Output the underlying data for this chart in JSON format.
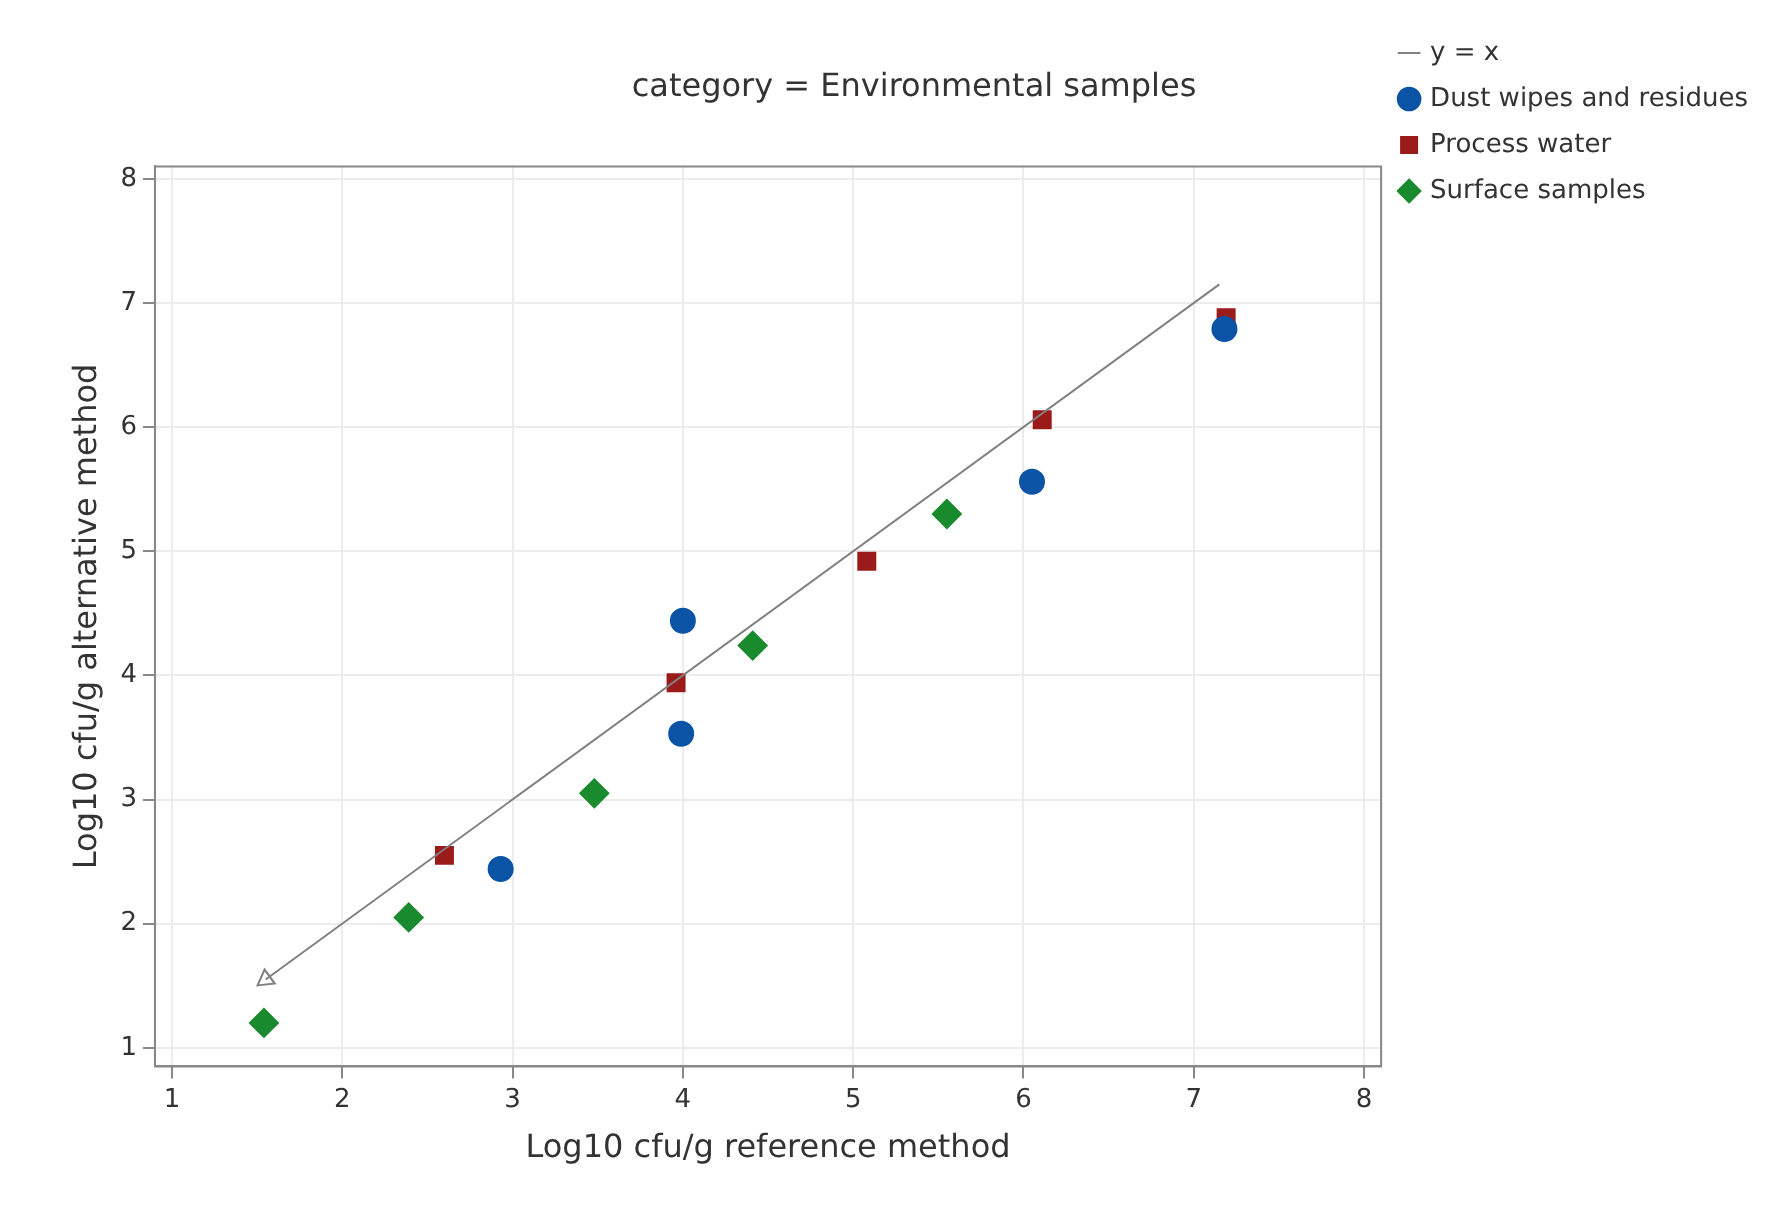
{
  "chart_data": {
    "type": "scatter",
    "title": "category = Environmental samples",
    "xlabel": "Log10 cfu/g reference method",
    "ylabel": "Log10 cfu/g alternative method",
    "xlim": [
      0.9,
      8.1
    ],
    "ylim": [
      0.85,
      8.1
    ],
    "xticks": [
      1,
      2,
      3,
      4,
      5,
      6,
      7,
      8
    ],
    "yticks": [
      1,
      2,
      3,
      4,
      5,
      6,
      7,
      8
    ],
    "grid": true,
    "legend": "right",
    "series": [
      {
        "name": "y = x",
        "type": "line",
        "color": "#808080",
        "marker": "triangle",
        "x": [
          1.55,
          7.15
        ],
        "values": [
          1.55,
          7.15
        ]
      },
      {
        "name": "Dust wipes and residues",
        "color": "#0a53a5",
        "marker": "circle",
        "x": [
          7.18,
          6.05,
          4.0,
          3.99,
          2.93
        ],
        "values": [
          6.79,
          5.56,
          4.44,
          3.53,
          2.44
        ]
      },
      {
        "name": "Process water",
        "color": "#9b1b1b",
        "marker": "square",
        "x": [
          7.19,
          6.11,
          5.08,
          3.96,
          2.6
        ],
        "values": [
          6.88,
          6.06,
          4.92,
          3.94,
          2.55
        ]
      },
      {
        "name": "Surface samples",
        "color": "#1a8a2e",
        "marker": "diamond",
        "x": [
          5.55,
          4.41,
          3.48,
          2.39,
          1.54
        ],
        "values": [
          5.3,
          4.24,
          3.05,
          2.05,
          1.2
        ]
      }
    ]
  }
}
